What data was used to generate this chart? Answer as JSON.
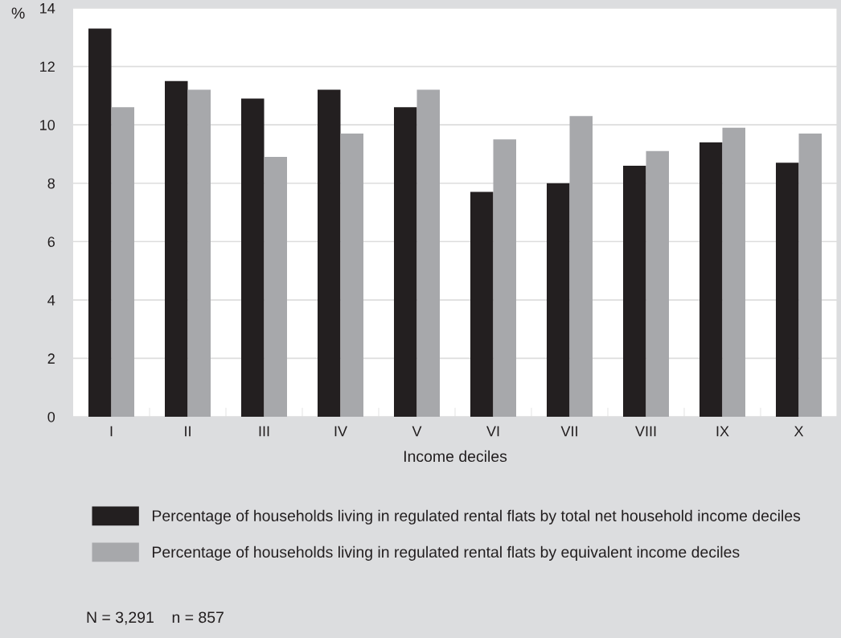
{
  "chart_data": {
    "type": "bar",
    "xlabel": "Income deciles",
    "ylabel": "%",
    "categories": [
      "I",
      "II",
      "III",
      "IV",
      "V",
      "VI",
      "VII",
      "VIII",
      "IX",
      "X"
    ],
    "series": [
      {
        "name": "Percentage of households living in regulated rental flats by total net household income deciles",
        "color": "#231f20",
        "values": [
          13.3,
          11.5,
          10.9,
          11.2,
          10.6,
          7.7,
          8.0,
          8.6,
          9.4,
          8.7
        ]
      },
      {
        "name": "Percentage of households living in regulated rental flats by equivalent income deciles",
        "color": "#a7a8ab",
        "values": [
          10.6,
          11.2,
          8.9,
          9.7,
          11.2,
          9.5,
          10.3,
          9.1,
          9.9,
          9.7
        ]
      }
    ],
    "ylim": [
      0,
      14
    ],
    "yticks": [
      0,
      2,
      4,
      6,
      8,
      10,
      12,
      14
    ],
    "grid": "y",
    "legend": "bottom",
    "annotations": [
      "N = 3,291    n = 857"
    ]
  }
}
